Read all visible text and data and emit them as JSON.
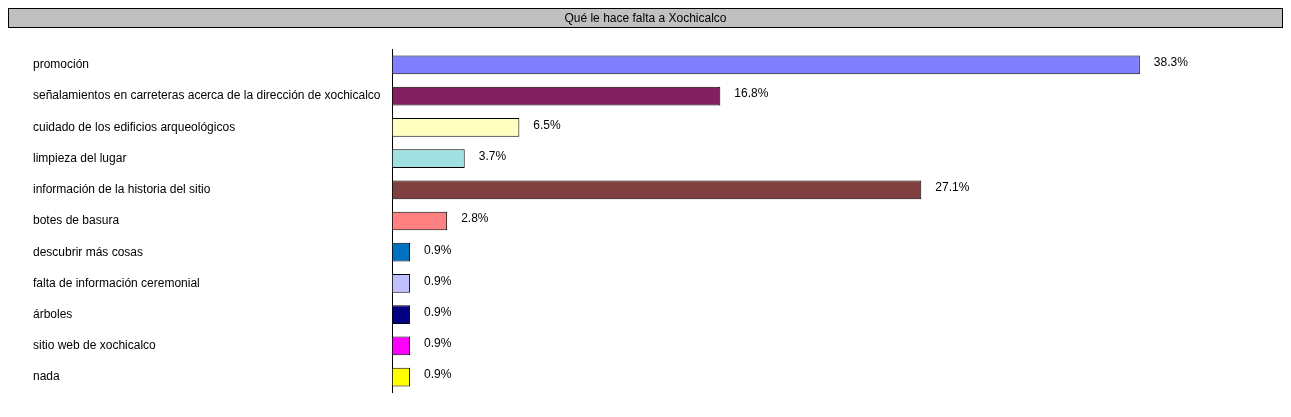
{
  "chart_data": {
    "type": "bar",
    "orientation": "horizontal",
    "title": "Qué le hace falta a Xochicalco",
    "categories": [
      "promoción",
      "señalamientos en carreteras acerca de la dirección de xochicalco",
      "cuidado de los edificios arqueológicos",
      "limpieza del lugar",
      "información de la historia del sitio",
      "botes de basura",
      "descubrir más cosas",
      "falta de información ceremonial",
      "árboles",
      "sitio web de xochicalco",
      "nada"
    ],
    "values": [
      38.3,
      16.8,
      6.5,
      3.7,
      27.1,
      2.8,
      0.9,
      0.9,
      0.9,
      0.9,
      0.9
    ],
    "value_labels": [
      "38.3%",
      "16.8%",
      "6.5%",
      "3.7%",
      "27.1%",
      "2.8%",
      "0.9%",
      "0.9%",
      "0.9%",
      "0.9%",
      "0.9%"
    ],
    "colors": [
      "#8080ff",
      "#802060",
      "#ffffc0",
      "#a0e0e0",
      "#804040",
      "#ff8080",
      "#0070c0",
      "#c0c0ff",
      "#000080",
      "#ff00ff",
      "#ffff00"
    ],
    "grid": false,
    "legend": false
  }
}
